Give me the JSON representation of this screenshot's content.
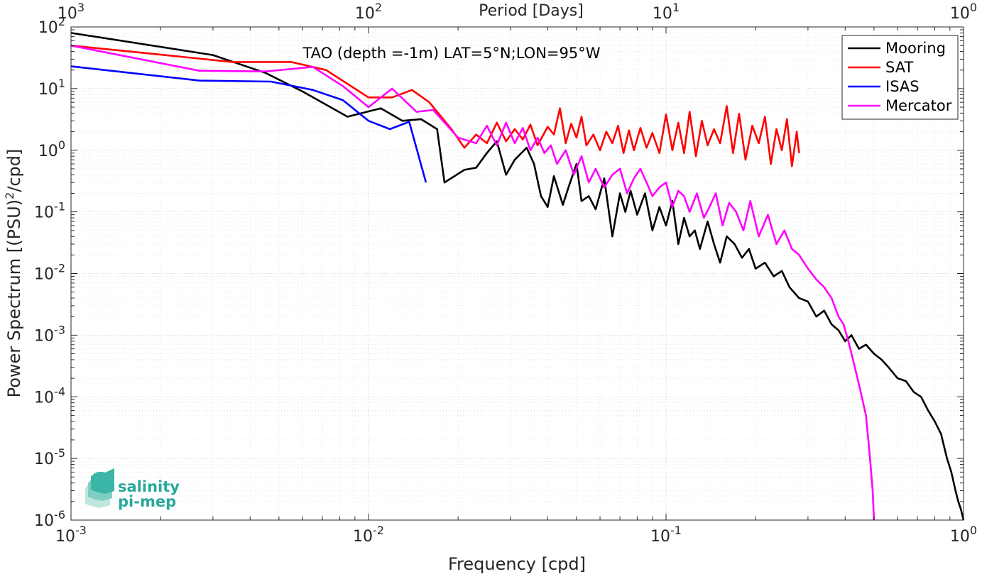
{
  "chart_data": {
    "type": "line",
    "title": "TAO (depth =-1m) LAT=5°N;LON=95°W",
    "xlabel": "Frequency [cpd]",
    "ylabel": "Power Spectrum [(PSU)²/cpd]",
    "x2label": "Period [Days]",
    "xscale": "log",
    "yscale": "log",
    "xlim": [
      0.001,
      1
    ],
    "ylim": [
      1e-06,
      100
    ],
    "grid": true,
    "legend_position": "top-right",
    "x_ticks": [
      {
        "value": 0.001,
        "base": "10",
        "exp": "-3"
      },
      {
        "value": 0.01,
        "base": "10",
        "exp": "-2"
      },
      {
        "value": 0.1,
        "base": "10",
        "exp": "-1"
      },
      {
        "value": 1,
        "base": "10",
        "exp": "0"
      }
    ],
    "x2_ticks": [
      {
        "value": 0.001,
        "base": "10",
        "exp": "3"
      },
      {
        "value": 0.01,
        "base": "10",
        "exp": "2"
      },
      {
        "value": 0.1,
        "base": "10",
        "exp": "1"
      },
      {
        "value": 1,
        "base": "10",
        "exp": "0"
      }
    ],
    "y_ticks": [
      {
        "value": 100,
        "base": "10",
        "exp": "2"
      },
      {
        "value": 10,
        "base": "10",
        "exp": "1"
      },
      {
        "value": 1,
        "base": "10",
        "exp": "0"
      },
      {
        "value": 0.1,
        "base": "10",
        "exp": "-1"
      },
      {
        "value": 0.01,
        "base": "10",
        "exp": "-2"
      },
      {
        "value": 0.001,
        "base": "10",
        "exp": "-3"
      },
      {
        "value": 0.0001,
        "base": "10",
        "exp": "-4"
      },
      {
        "value": 1e-05,
        "base": "10",
        "exp": "-5"
      },
      {
        "value": 1e-06,
        "base": "10",
        "exp": "-6"
      }
    ],
    "series": [
      {
        "name": "Mooring",
        "color": "#000000",
        "x": [
          0.001,
          0.003,
          0.0045,
          0.006,
          0.0085,
          0.0095,
          0.011,
          0.013,
          0.015,
          0.017,
          0.018,
          0.021,
          0.023,
          0.025,
          0.027,
          0.029,
          0.031,
          0.034,
          0.036,
          0.038,
          0.04,
          0.042,
          0.045,
          0.047,
          0.05,
          0.052,
          0.055,
          0.058,
          0.062,
          0.066,
          0.07,
          0.073,
          0.076,
          0.08,
          0.085,
          0.09,
          0.095,
          0.1,
          0.105,
          0.11,
          0.115,
          0.12,
          0.125,
          0.13,
          0.138,
          0.145,
          0.152,
          0.16,
          0.17,
          0.18,
          0.19,
          0.2,
          0.215,
          0.23,
          0.245,
          0.26,
          0.28,
          0.3,
          0.32,
          0.34,
          0.36,
          0.38,
          0.4,
          0.42,
          0.445,
          0.47,
          0.5,
          0.53,
          0.56,
          0.6,
          0.64,
          0.68,
          0.72,
          0.76,
          0.8,
          0.84,
          0.88,
          0.91,
          0.94,
          0.96,
          0.98,
          1.0
        ],
        "y": [
          80,
          35,
          18,
          9,
          3.5,
          4,
          4.8,
          3,
          3.2,
          2.2,
          0.3,
          0.48,
          0.52,
          0.9,
          1.4,
          0.4,
          0.7,
          1.1,
          0.6,
          0.18,
          0.12,
          0.38,
          0.13,
          0.25,
          0.6,
          0.15,
          0.18,
          0.11,
          0.35,
          0.04,
          0.2,
          0.1,
          0.22,
          0.09,
          0.2,
          0.05,
          0.12,
          0.06,
          0.15,
          0.03,
          0.08,
          0.04,
          0.05,
          0.025,
          0.07,
          0.03,
          0.015,
          0.04,
          0.03,
          0.018,
          0.025,
          0.012,
          0.015,
          0.009,
          0.011,
          0.006,
          0.004,
          0.0035,
          0.002,
          0.0025,
          0.0015,
          0.0012,
          0.0008,
          0.001,
          0.0006,
          0.0007,
          0.0005,
          0.0004,
          0.0003,
          0.0002,
          0.00018,
          0.00012,
          0.0001,
          6e-05,
          4e-05,
          2.5e-05,
          1e-05,
          6e-06,
          3e-06,
          2e-06,
          1.5e-06,
          1e-06
        ]
      },
      {
        "name": "SAT",
        "color": "#ff0000",
        "x": [
          0.001,
          0.0035,
          0.0055,
          0.0072,
          0.01,
          0.012,
          0.014,
          0.016,
          0.019,
          0.021,
          0.023,
          0.025,
          0.027,
          0.029,
          0.031,
          0.033,
          0.035,
          0.037,
          0.04,
          0.042,
          0.044,
          0.046,
          0.048,
          0.05,
          0.052,
          0.054,
          0.057,
          0.06,
          0.063,
          0.066,
          0.069,
          0.072,
          0.075,
          0.078,
          0.082,
          0.086,
          0.09,
          0.095,
          0.1,
          0.105,
          0.11,
          0.115,
          0.12,
          0.126,
          0.132,
          0.138,
          0.145,
          0.152,
          0.16,
          0.168,
          0.176,
          0.185,
          0.195,
          0.205,
          0.215,
          0.225,
          0.235,
          0.245,
          0.255,
          0.265,
          0.275,
          0.28
        ],
        "y": [
          50,
          27,
          27,
          20,
          7.2,
          7.2,
          9.5,
          6,
          2.2,
          1.1,
          1.8,
          1.3,
          2.8,
          1.4,
          2.2,
          1.5,
          2.6,
          1.2,
          2.4,
          1.8,
          4.8,
          1.3,
          2.7,
          1.6,
          3.5,
          1.2,
          1.8,
          1.0,
          2.0,
          1.3,
          2.5,
          0.9,
          2.1,
          1.0,
          2.3,
          1.1,
          1.9,
          0.9,
          3.8,
          1.0,
          2.8,
          0.9,
          4.2,
          0.8,
          3.0,
          1.2,
          2.2,
          1.3,
          5.2,
          0.9,
          3.9,
          0.7,
          2.5,
          1.3,
          3.5,
          0.6,
          2.2,
          1.0,
          3.2,
          0.55,
          2.0,
          0.9
        ]
      },
      {
        "name": "ISAS",
        "color": "#0000ff",
        "x": [
          0.001,
          0.0027,
          0.0047,
          0.0065,
          0.0082,
          0.01,
          0.0118,
          0.0137,
          0.0156
        ],
        "y": [
          23,
          13.5,
          13,
          9.5,
          6.5,
          3,
          2.2,
          2.9,
          0.3
        ]
      },
      {
        "name": "Mercator",
        "color": "#ff00ff",
        "x": [
          0.001,
          0.0027,
          0.0045,
          0.0065,
          0.0082,
          0.01,
          0.012,
          0.0145,
          0.0165,
          0.02,
          0.023,
          0.025,
          0.027,
          0.029,
          0.031,
          0.033,
          0.035,
          0.037,
          0.039,
          0.041,
          0.043,
          0.046,
          0.049,
          0.052,
          0.055,
          0.058,
          0.062,
          0.066,
          0.07,
          0.074,
          0.078,
          0.082,
          0.086,
          0.09,
          0.095,
          0.1,
          0.105,
          0.11,
          0.115,
          0.12,
          0.127,
          0.134,
          0.14,
          0.147,
          0.155,
          0.163,
          0.172,
          0.182,
          0.192,
          0.205,
          0.22,
          0.235,
          0.25,
          0.265,
          0.28,
          0.3,
          0.32,
          0.34,
          0.36,
          0.38,
          0.395,
          0.41,
          0.425,
          0.44,
          0.455,
          0.47,
          0.485,
          0.495,
          0.5
        ],
        "y": [
          50,
          19.5,
          19,
          22.5,
          11,
          5,
          10,
          4.2,
          4.5,
          1.6,
          1.3,
          2.5,
          1.2,
          2.8,
          1.3,
          2.3,
          1.0,
          1.6,
          0.9,
          1.2,
          0.6,
          1.0,
          0.4,
          0.8,
          0.3,
          0.5,
          0.25,
          0.4,
          0.5,
          0.2,
          0.35,
          0.5,
          0.3,
          0.18,
          0.25,
          0.3,
          0.12,
          0.22,
          0.18,
          0.1,
          0.2,
          0.08,
          0.12,
          0.2,
          0.06,
          0.14,
          0.1,
          0.05,
          0.15,
          0.04,
          0.09,
          0.03,
          0.05,
          0.025,
          0.02,
          0.012,
          0.008,
          0.006,
          0.004,
          0.002,
          0.0015,
          0.0008,
          0.0004,
          0.0002,
          0.0001,
          5e-05,
          1e-05,
          3e-06,
          1e-06
        ]
      }
    ]
  },
  "logo": {
    "line1": "salinity",
    "line2": "pi-mep"
  }
}
